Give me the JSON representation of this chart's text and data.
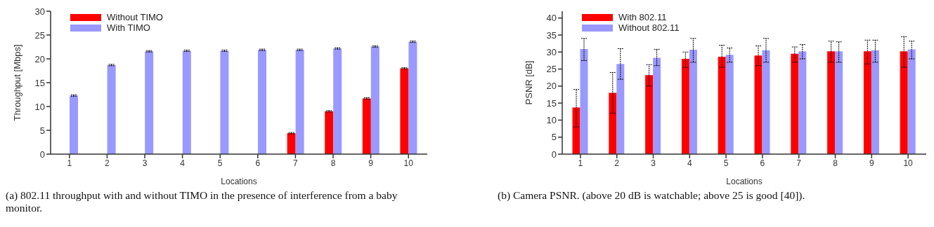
{
  "chart_data": [
    {
      "type": "bar",
      "xlabel": "Locations",
      "ylabel": "Throughput [Mbps]",
      "categories": [
        "1",
        "2",
        "3",
        "4",
        "5",
        "6",
        "7",
        "8",
        "9",
        "10"
      ],
      "ylim": [
        0,
        30
      ],
      "yticks": [
        0,
        5,
        10,
        15,
        20,
        25,
        30
      ],
      "legend": "top left",
      "series": [
        {
          "name": "Without TIMO",
          "color": "#ff0000",
          "values": [
            0,
            0,
            0,
            0,
            0,
            0,
            4.4,
            9.0,
            11.7,
            18.0
          ],
          "errors": [
            null,
            null,
            null,
            null,
            null,
            null,
            0.15,
            0.15,
            0.15,
            0.15
          ]
        },
        {
          "name": "With TIMO",
          "color": "#9999ff",
          "values": [
            12.3,
            18.7,
            21.6,
            21.7,
            21.7,
            21.9,
            21.9,
            22.2,
            22.6,
            23.6
          ],
          "errors": [
            0.15,
            0.15,
            0.15,
            0.15,
            0.15,
            0.15,
            0.15,
            0.15,
            0.15,
            0.15
          ]
        }
      ],
      "annotations": [
        "(a) 802.11 throughput with and without TIMO in the presence of interference from a baby monitor."
      ]
    },
    {
      "type": "bar",
      "xlabel": "Locations",
      "ylabel": "PSNR [dB]",
      "categories": [
        "1",
        "2",
        "3",
        "4",
        "5",
        "6",
        "7",
        "8",
        "9",
        "10"
      ],
      "ylim": [
        0,
        42
      ],
      "yticks": [
        0,
        5,
        10,
        15,
        20,
        25,
        30,
        35,
        40
      ],
      "legend": "top left",
      "series": [
        {
          "name": "With 802.11",
          "color": "#ff0000",
          "values": [
            13.7,
            18.0,
            23.2,
            28.0,
            28.6,
            29.0,
            29.5,
            30.2,
            30.2,
            30.2
          ],
          "errors": [
            [
              8,
              19
            ],
            [
              12,
              24
            ],
            [
              20,
              26.3
            ],
            [
              25.5,
              30
            ],
            [
              25.5,
              32
            ],
            [
              26,
              31.8
            ],
            [
              27,
              31.5
            ],
            [
              27,
              33.2
            ],
            [
              26.5,
              33.5
            ],
            [
              25.5,
              34.5
            ]
          ]
        },
        {
          "name": "Without 802.11",
          "color": "#9999ff",
          "values": [
            30.9,
            26.5,
            28.3,
            30.7,
            29.2,
            30.5,
            30.2,
            30.2,
            30.5,
            30.8
          ],
          "errors": [
            [
              27.5,
              34
            ],
            [
              22,
              31
            ],
            [
              26,
              30.8
            ],
            [
              27,
              34
            ],
            [
              27,
              31.2
            ],
            [
              27,
              34
            ],
            [
              28,
              32.2
            ],
            [
              27,
              33
            ],
            [
              27,
              33.5
            ],
            [
              28,
              33.2
            ]
          ]
        }
      ],
      "annotations": [
        "(b) Camera PSNR. (above 20 dB is watchable; above 25 is good [40])."
      ]
    }
  ]
}
